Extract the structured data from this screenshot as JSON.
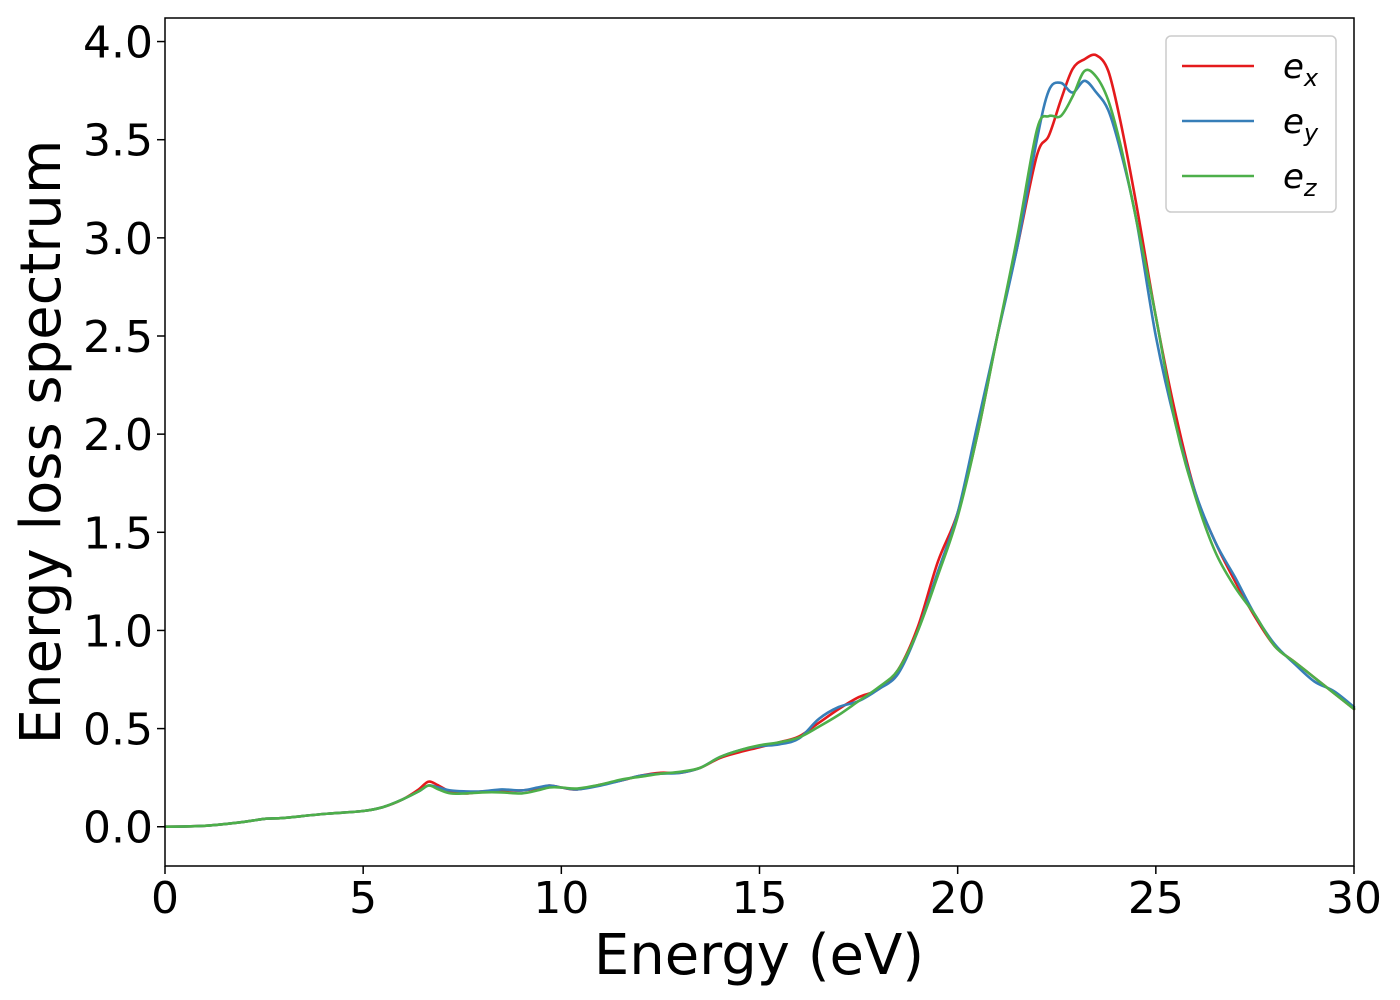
{
  "chart_data": {
    "type": "line",
    "title": "",
    "xlabel": "Energy (eV)",
    "ylabel": "Energy loss spectrum",
    "xlim": [
      0,
      30
    ],
    "ylim": [
      -0.2,
      4.12
    ],
    "xticks": [
      "0",
      "5",
      "10",
      "15",
      "20",
      "25",
      "30"
    ],
    "yticks": [
      "0.0",
      "0.5",
      "1.0",
      "1.5",
      "2.0",
      "2.5",
      "3.0",
      "3.5",
      "4.0"
    ],
    "grid": false,
    "legend_position": "top-right",
    "series": [
      {
        "name": "e",
        "subscript": "x",
        "color": "#e41a1c",
        "x": [
          0,
          1,
          2,
          2.5,
          3,
          4,
          5,
          5.5,
          6,
          6.4,
          6.65,
          6.9,
          7.2,
          7.6,
          8,
          8.5,
          9,
          9.4,
          9.7,
          10,
          10.4,
          11,
          11.5,
          12,
          12.5,
          13,
          13.5,
          14,
          14.5,
          15,
          15.5,
          16,
          16.5,
          17,
          17.5,
          18,
          18.5,
          19,
          19.5,
          20,
          20.5,
          21,
          21.5,
          22,
          22.3,
          22.6,
          22.9,
          23.2,
          23.5,
          23.8,
          24.1,
          24.5,
          25,
          25.5,
          26,
          26.5,
          27,
          27.5,
          28,
          28.5,
          29,
          29.5,
          30
        ],
        "y": [
          0.0,
          0.005,
          0.025,
          0.04,
          0.045,
          0.065,
          0.08,
          0.1,
          0.14,
          0.19,
          0.23,
          0.21,
          0.18,
          0.17,
          0.18,
          0.185,
          0.185,
          0.195,
          0.21,
          0.2,
          0.19,
          0.215,
          0.235,
          0.26,
          0.275,
          0.275,
          0.3,
          0.35,
          0.38,
          0.405,
          0.43,
          0.46,
          0.53,
          0.6,
          0.66,
          0.7,
          0.8,
          1.02,
          1.35,
          1.6,
          2.0,
          2.5,
          2.95,
          3.42,
          3.52,
          3.7,
          3.86,
          3.91,
          3.93,
          3.85,
          3.6,
          3.18,
          2.6,
          2.1,
          1.7,
          1.45,
          1.25,
          1.07,
          0.92,
          0.84,
          0.76,
          0.68,
          0.6
        ]
      },
      {
        "name": "e",
        "subscript": "y",
        "color": "#377eb8",
        "x": [
          0,
          1,
          2,
          2.5,
          3,
          4,
          5,
          5.5,
          6,
          6.4,
          6.65,
          6.9,
          7.2,
          7.6,
          8,
          8.5,
          9,
          9.4,
          9.7,
          10,
          10.4,
          11,
          11.5,
          12,
          12.5,
          13,
          13.5,
          14,
          14.5,
          15,
          15.5,
          16,
          16.5,
          17,
          17.5,
          18,
          18.5,
          19,
          19.5,
          20,
          20.5,
          21,
          21.5,
          22,
          22.3,
          22.6,
          22.9,
          23.2,
          23.5,
          23.8,
          24.1,
          24.5,
          25,
          25.5,
          26,
          26.5,
          27,
          27.5,
          28,
          28.5,
          29,
          29.5,
          30
        ],
        "y": [
          0.0,
          0.005,
          0.025,
          0.04,
          0.045,
          0.065,
          0.08,
          0.1,
          0.14,
          0.18,
          0.21,
          0.2,
          0.185,
          0.18,
          0.18,
          0.19,
          0.185,
          0.2,
          0.21,
          0.2,
          0.19,
          0.21,
          0.235,
          0.26,
          0.27,
          0.275,
          0.3,
          0.355,
          0.39,
          0.41,
          0.42,
          0.45,
          0.55,
          0.61,
          0.64,
          0.7,
          0.78,
          1.0,
          1.3,
          1.6,
          2.05,
          2.5,
          2.95,
          3.5,
          3.75,
          3.79,
          3.74,
          3.8,
          3.74,
          3.65,
          3.45,
          3.1,
          2.5,
          2.05,
          1.7,
          1.45,
          1.27,
          1.08,
          0.93,
          0.83,
          0.74,
          0.69,
          0.61
        ]
      },
      {
        "name": "e",
        "subscript": "z",
        "color": "#4daf4a",
        "x": [
          0,
          1,
          2,
          2.5,
          3,
          4,
          5,
          5.5,
          6,
          6.4,
          6.65,
          6.9,
          7.2,
          7.6,
          8,
          8.5,
          9,
          9.4,
          9.7,
          10,
          10.4,
          11,
          11.5,
          12,
          12.5,
          13,
          13.5,
          14,
          14.5,
          15,
          15.5,
          16,
          16.5,
          17,
          17.5,
          18,
          18.5,
          19,
          19.5,
          20,
          20.5,
          21,
          21.5,
          22,
          22.3,
          22.6,
          22.9,
          23.2,
          23.5,
          23.8,
          24.1,
          24.5,
          25,
          25.5,
          26,
          26.5,
          27,
          27.5,
          28,
          28.5,
          29,
          29.5,
          30
        ],
        "y": [
          0.0,
          0.005,
          0.025,
          0.04,
          0.045,
          0.065,
          0.08,
          0.1,
          0.14,
          0.18,
          0.21,
          0.19,
          0.17,
          0.17,
          0.175,
          0.175,
          0.17,
          0.185,
          0.2,
          0.2,
          0.195,
          0.215,
          0.24,
          0.255,
          0.27,
          0.28,
          0.3,
          0.355,
          0.39,
          0.415,
          0.43,
          0.455,
          0.51,
          0.57,
          0.64,
          0.71,
          0.8,
          1.0,
          1.28,
          1.58,
          2.0,
          2.5,
          3.0,
          3.55,
          3.62,
          3.62,
          3.72,
          3.85,
          3.82,
          3.7,
          3.48,
          3.1,
          2.6,
          2.05,
          1.68,
          1.4,
          1.22,
          1.08,
          0.92,
          0.84,
          0.76,
          0.68,
          0.6
        ]
      }
    ]
  }
}
